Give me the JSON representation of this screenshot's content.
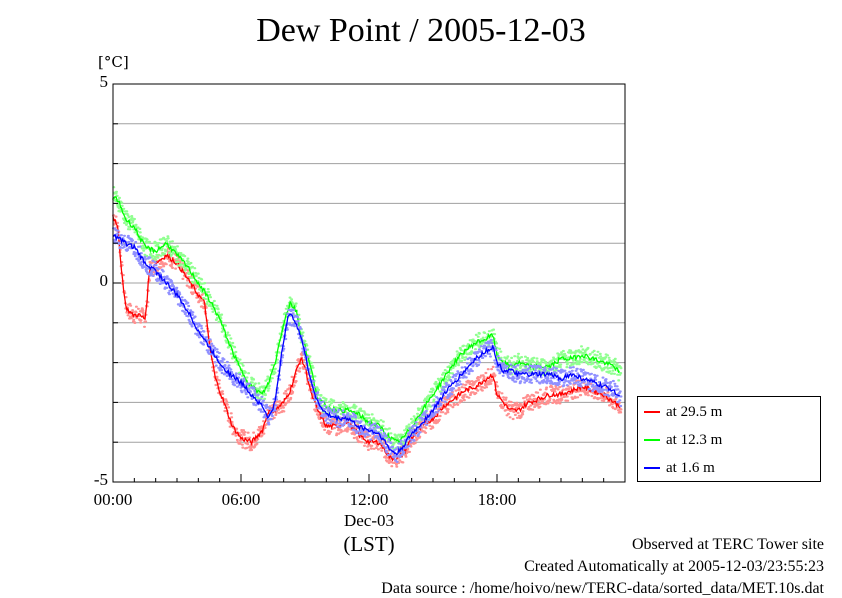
{
  "title": "Dew Point / 2005-12-03",
  "unit_label": "[°C]",
  "x_axis": {
    "ticks": [
      "00:00",
      "06:00",
      "12:00",
      "18:00"
    ],
    "date_label": "Dec-03",
    "tz_label": "(LST)"
  },
  "footer": {
    "line1": "Observed at TERC Tower site",
    "line2": "Created Automatically at 2005-12-03/23:55:23",
    "line3": "Data source : /home/hoivo/new/TERC-data/sorted_data/MET.10s.dat"
  },
  "chart_data": {
    "type": "line",
    "title": "Dew Point / 2005-12-03",
    "ylabel": "[°C]",
    "xlabel": "(LST)",
    "xlim": [
      0,
      24
    ],
    "ylim": [
      -5,
      5
    ],
    "yticks": [
      -5,
      0,
      5
    ],
    "grid": true,
    "legend_position": "outside-right-bottom",
    "series": [
      {
        "name": "at 29.5 m",
        "color": "#ff0000",
        "x": [
          0,
          0.25,
          0.4,
          0.6,
          0.9,
          1.2,
          1.5,
          1.6,
          1.7,
          2.0,
          2.5,
          3.0,
          3.5,
          4.0,
          4.3,
          4.5,
          4.8,
          5.2,
          5.6,
          6.0,
          6.5,
          7.0,
          7.3,
          7.6,
          8.0,
          8.3,
          8.6,
          8.8,
          9.0,
          9.3,
          9.6,
          10.0,
          10.5,
          11.0,
          11.5,
          12.0,
          12.5,
          13.0,
          13.3,
          13.6,
          14.0,
          14.5,
          15.0,
          15.5,
          16.0,
          16.5,
          17.0,
          17.5,
          17.8,
          18.0,
          18.3,
          18.6,
          19.0,
          19.5,
          20.0,
          20.5,
          21.0,
          21.5,
          22.0,
          22.5,
          23.0,
          23.5,
          23.8
        ],
        "y": [
          1.7,
          1.3,
          0.3,
          -0.6,
          -0.8,
          -0.8,
          -0.9,
          -0.4,
          0.3,
          0.5,
          0.7,
          0.5,
          0.1,
          -0.3,
          -0.5,
          -1.5,
          -2.4,
          -3.0,
          -3.6,
          -3.9,
          -4.0,
          -3.7,
          -3.2,
          -3.2,
          -3.0,
          -2.7,
          -2.2,
          -1.9,
          -2.1,
          -2.8,
          -3.2,
          -3.6,
          -3.6,
          -3.5,
          -3.8,
          -4.0,
          -4.0,
          -4.4,
          -4.4,
          -4.3,
          -3.9,
          -3.6,
          -3.4,
          -3.1,
          -2.9,
          -2.7,
          -2.6,
          -2.4,
          -2.3,
          -2.8,
          -3.0,
          -3.2,
          -3.2,
          -3.0,
          -2.9,
          -2.8,
          -2.8,
          -2.7,
          -2.6,
          -2.7,
          -2.8,
          -3.0,
          -3.1
        ]
      },
      {
        "name": "at 12.3 m",
        "color": "#00ff00",
        "x": [
          0,
          0.3,
          0.6,
          1.0,
          1.5,
          2.0,
          2.5,
          3.0,
          3.5,
          4.0,
          4.5,
          5.0,
          5.5,
          6.0,
          6.5,
          7.0,
          7.3,
          7.6,
          8.0,
          8.3,
          8.6,
          8.8,
          9.0,
          9.3,
          9.6,
          10.0,
          10.5,
          11.0,
          11.5,
          12.0,
          12.5,
          13.0,
          13.3,
          13.6,
          14.0,
          14.5,
          15.0,
          15.5,
          16.0,
          16.5,
          17.0,
          17.5,
          17.8,
          18.0,
          18.3,
          18.6,
          19.0,
          19.5,
          20.0,
          20.5,
          21.0,
          21.5,
          22.0,
          22.5,
          23.0,
          23.5,
          23.8
        ],
        "y": [
          2.2,
          2.0,
          1.6,
          1.4,
          0.9,
          0.8,
          1.0,
          0.7,
          0.4,
          0.0,
          -0.4,
          -0.9,
          -1.6,
          -2.2,
          -2.6,
          -2.8,
          -2.5,
          -2.0,
          -1.0,
          -0.5,
          -0.7,
          -1.3,
          -1.6,
          -2.2,
          -2.9,
          -3.1,
          -3.2,
          -3.2,
          -3.3,
          -3.5,
          -3.6,
          -3.9,
          -4.0,
          -3.9,
          -3.6,
          -3.2,
          -2.8,
          -2.4,
          -2.0,
          -1.7,
          -1.5,
          -1.4,
          -1.3,
          -1.8,
          -2.0,
          -2.1,
          -2.0,
          -2.1,
          -2.1,
          -2.1,
          -1.9,
          -1.9,
          -1.8,
          -1.9,
          -2.0,
          -2.1,
          -2.3
        ]
      },
      {
        "name": "at 1.6 m",
        "color": "#0000ff",
        "x": [
          0,
          0.3,
          0.6,
          1.0,
          1.5,
          2.0,
          2.5,
          3.0,
          3.5,
          4.0,
          4.5,
          5.0,
          5.5,
          6.0,
          6.5,
          7.0,
          7.3,
          7.6,
          7.9,
          8.2,
          8.5,
          8.8,
          9.0,
          9.3,
          9.6,
          10.0,
          10.5,
          11.0,
          11.5,
          12.0,
          12.5,
          13.0,
          13.3,
          13.6,
          14.0,
          14.5,
          15.0,
          15.5,
          16.0,
          16.5,
          17.0,
          17.5,
          17.8,
          18.0,
          18.3,
          18.6,
          19.0,
          19.5,
          20.0,
          20.5,
          21.0,
          21.5,
          22.0,
          22.5,
          23.0,
          23.5,
          23.8
        ],
        "y": [
          1.2,
          1.1,
          1.0,
          0.9,
          0.5,
          0.3,
          0.0,
          -0.3,
          -0.7,
          -1.2,
          -1.6,
          -2.0,
          -2.3,
          -2.5,
          -2.8,
          -3.1,
          -3.4,
          -3.0,
          -1.8,
          -0.8,
          -0.9,
          -1.3,
          -1.8,
          -2.5,
          -3.0,
          -3.3,
          -3.4,
          -3.4,
          -3.6,
          -3.7,
          -3.8,
          -4.2,
          -4.3,
          -4.1,
          -3.8,
          -3.5,
          -3.2,
          -2.8,
          -2.5,
          -2.2,
          -1.9,
          -1.7,
          -1.6,
          -2.0,
          -2.2,
          -2.2,
          -2.3,
          -2.3,
          -2.3,
          -2.3,
          -2.4,
          -2.3,
          -2.4,
          -2.5,
          -2.6,
          -2.7,
          -2.9
        ]
      }
    ]
  }
}
